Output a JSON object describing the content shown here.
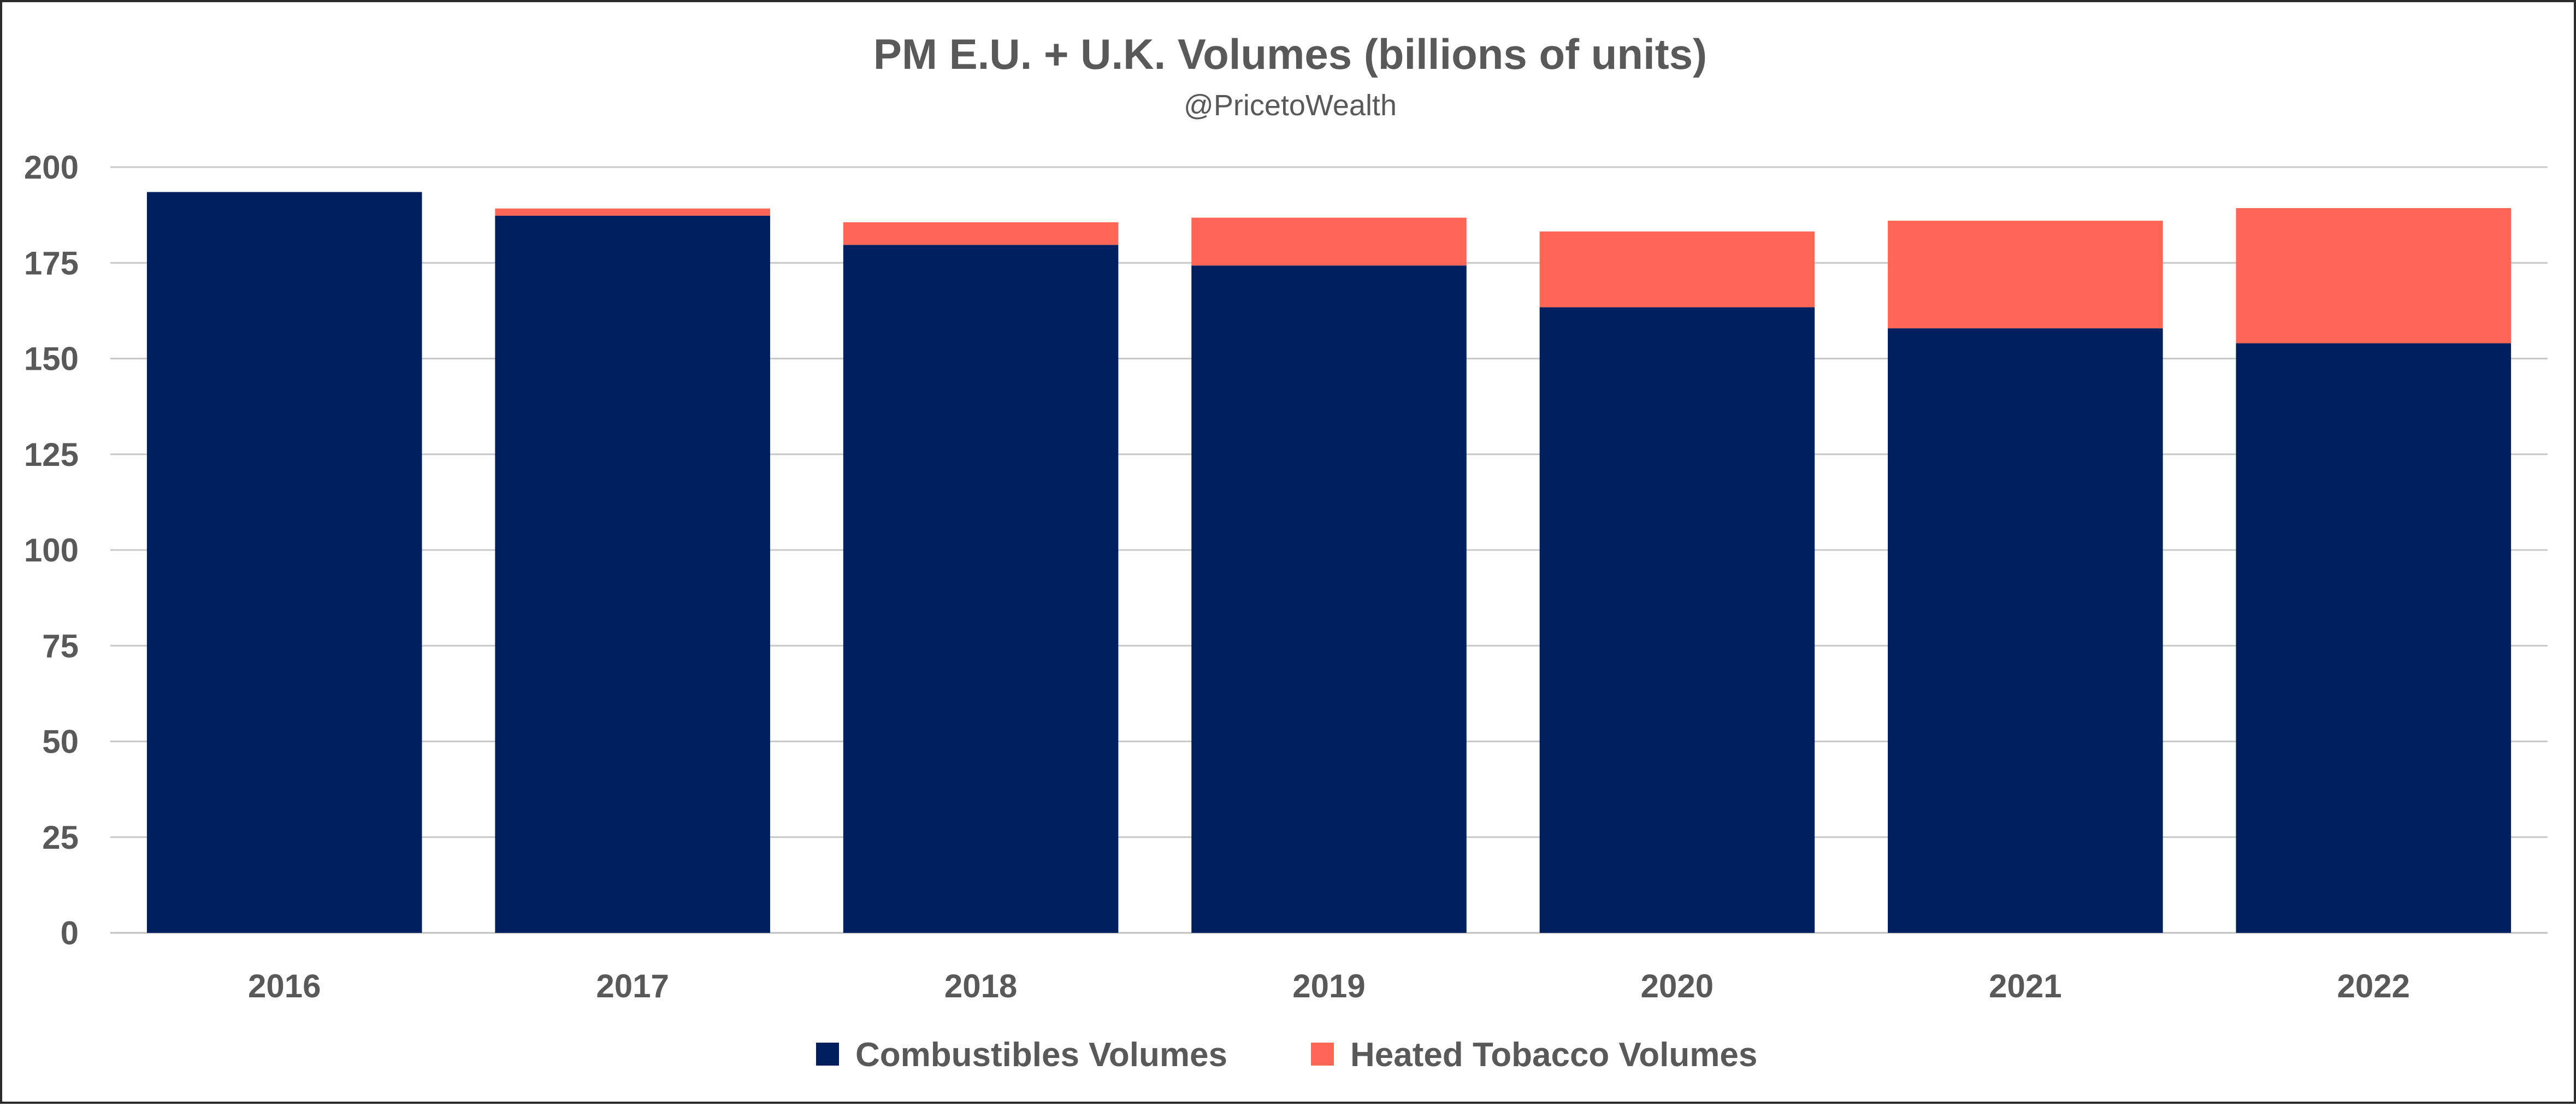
{
  "chart_data": {
    "type": "bar",
    "stacked": true,
    "title": "PM E.U. + U.K. Volumes (billions of units)",
    "subtitle": "@PricetoWealth",
    "xlabel": "",
    "ylabel": "",
    "ylim": [
      0,
      200
    ],
    "yticks": [
      0,
      25,
      50,
      75,
      100,
      125,
      150,
      175,
      200
    ],
    "grid": true,
    "legend_position": "bottom",
    "categories": [
      "2016",
      "2017",
      "2018",
      "2019",
      "2020",
      "2021",
      "2022"
    ],
    "series": [
      {
        "name": "Combustibles Volumes",
        "color": "#001F5F",
        "values": [
          193.5,
          187.3,
          179.7,
          174.3,
          163.4,
          157.9,
          154.0
        ]
      },
      {
        "name": "Heated Tobacco Volumes",
        "color": "#FF6655",
        "values": [
          0.0,
          1.9,
          5.9,
          12.5,
          19.8,
          28.1,
          35.3
        ]
      }
    ]
  }
}
